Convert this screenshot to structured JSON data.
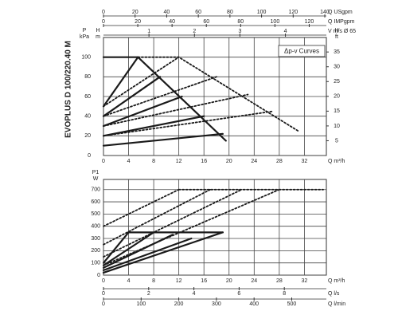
{
  "title": "EVOPLUS D 100/220.40 M",
  "chart_data": [
    {
      "type": "line",
      "grid": true,
      "annotation": "Δp-v Curves",
      "xlim": [
        0,
        35.5
      ],
      "xticks": [
        0,
        4,
        8,
        12,
        16,
        20,
        24,
        28,
        32
      ],
      "xlabel": "Q m³/h",
      "ylim": [
        0,
        120
      ],
      "yticks": [
        0,
        20,
        40,
        60,
        80,
        100
      ],
      "ylabel": [
        "P",
        "kPa"
      ],
      "ylabel2": [
        "H",
        "m"
      ],
      "right_axis": {
        "label": [
          "H",
          "ft"
        ],
        "lim": [
          0,
          39.9
        ],
        "ticks": [
          5,
          10,
          15,
          20,
          25,
          30,
          35
        ]
      },
      "top_axes": [
        {
          "label": "Q USgpm",
          "lim": [
            0,
            141
          ],
          "ticks": [
            0,
            20,
            40,
            60,
            80,
            100,
            120,
            140
          ]
        },
        {
          "label": "Q IMPgpm",
          "lim": [
            0,
            130
          ],
          "ticks": [
            0,
            20,
            40,
            60,
            80,
            100,
            120
          ]
        },
        {
          "label": "V m/s Ø 65",
          "lim": [
            0,
            4.9
          ],
          "ticks": [
            1,
            2,
            3,
            4
          ]
        }
      ],
      "series": [
        {
          "color": "#1a1a1a",
          "style": "solid",
          "x": [
            0,
            5.5,
            19.5
          ],
          "values": [
            100,
            100,
            15
          ]
        },
        {
          "color": "#1a1a1a",
          "style": "solid",
          "x": [
            0,
            5.5
          ],
          "values": [
            50,
            100
          ]
        },
        {
          "color": "#1a1a1a",
          "style": "solid",
          "x": [
            0,
            9
          ],
          "values": [
            40,
            80
          ]
        },
        {
          "color": "#1a1a1a",
          "style": "solid",
          "x": [
            0,
            12.5
          ],
          "values": [
            30,
            60
          ]
        },
        {
          "color": "#1a1a1a",
          "style": "solid",
          "x": [
            0,
            16
          ],
          "values": [
            20,
            40
          ]
        },
        {
          "color": "#1a1a1a",
          "style": "solid",
          "x": [
            0,
            19
          ],
          "values": [
            10,
            22
          ]
        },
        {
          "color": "#1a1a1a",
          "style": "dotted",
          "x": [
            5.5,
            12,
            31
          ],
          "values": [
            100,
            100,
            25
          ]
        },
        {
          "color": "#1a1a1a",
          "style": "dotted",
          "x": [
            0,
            12
          ],
          "values": [
            50,
            100
          ]
        },
        {
          "color": "#1a1a1a",
          "style": "dotted",
          "x": [
            0,
            18
          ],
          "values": [
            40,
            80
          ]
        },
        {
          "color": "#1a1a1a",
          "style": "dotted",
          "x": [
            0,
            23
          ],
          "values": [
            30,
            62
          ]
        },
        {
          "color": "#1a1a1a",
          "style": "dotted",
          "x": [
            0,
            27
          ],
          "values": [
            20,
            45
          ]
        }
      ]
    },
    {
      "type": "line",
      "grid": true,
      "xlim": [
        0,
        35.5
      ],
      "xticks": [
        0,
        4,
        8,
        12,
        16,
        20,
        24,
        28,
        32
      ],
      "xlabel": "Q m³/h",
      "ylim": [
        0,
        783
      ],
      "yticks": [
        0,
        100,
        200,
        300,
        400,
        500,
        600,
        700
      ],
      "ylabel": [
        "P1",
        "W"
      ],
      "bottom_axes": [
        {
          "label": "Q l/s",
          "lim": [
            0,
            9.86
          ],
          "ticks": [
            0,
            2,
            4,
            6,
            8
          ]
        },
        {
          "label": "Q l/min",
          "lim": [
            0,
            592
          ],
          "ticks": [
            0,
            100,
            200,
            300,
            400,
            500
          ]
        }
      ],
      "series": [
        {
          "color": "#1a1a1a",
          "style": "solid",
          "x": [
            4,
            19
          ],
          "values": [
            350,
            350
          ]
        },
        {
          "color": "#1a1a1a",
          "style": "solid",
          "x": [
            0,
            4
          ],
          "values": [
            100,
            350
          ]
        },
        {
          "color": "#1a1a1a",
          "style": "solid",
          "x": [
            0,
            8
          ],
          "values": [
            80,
            350
          ]
        },
        {
          "color": "#1a1a1a",
          "style": "solid",
          "x": [
            0,
            11
          ],
          "values": [
            60,
            330
          ]
        },
        {
          "color": "#1a1a1a",
          "style": "solid",
          "x": [
            0,
            14
          ],
          "values": [
            40,
            300
          ]
        },
        {
          "color": "#1a1a1a",
          "style": "solid",
          "x": [
            0,
            19
          ],
          "values": [
            20,
            350
          ]
        },
        {
          "color": "#1a1a1a",
          "style": "dotted",
          "x": [
            12,
            35
          ],
          "values": [
            700,
            700
          ]
        },
        {
          "color": "#1a1a1a",
          "style": "dotted",
          "x": [
            0,
            12
          ],
          "values": [
            400,
            700
          ]
        },
        {
          "color": "#1a1a1a",
          "style": "dotted",
          "x": [
            0,
            17
          ],
          "values": [
            250,
            700
          ]
        },
        {
          "color": "#1a1a1a",
          "style": "dotted",
          "x": [
            0,
            22
          ],
          "values": [
            150,
            700
          ]
        },
        {
          "color": "#1a1a1a",
          "style": "dotted",
          "x": [
            0,
            28
          ],
          "values": [
            80,
            700
          ]
        }
      ]
    }
  ]
}
